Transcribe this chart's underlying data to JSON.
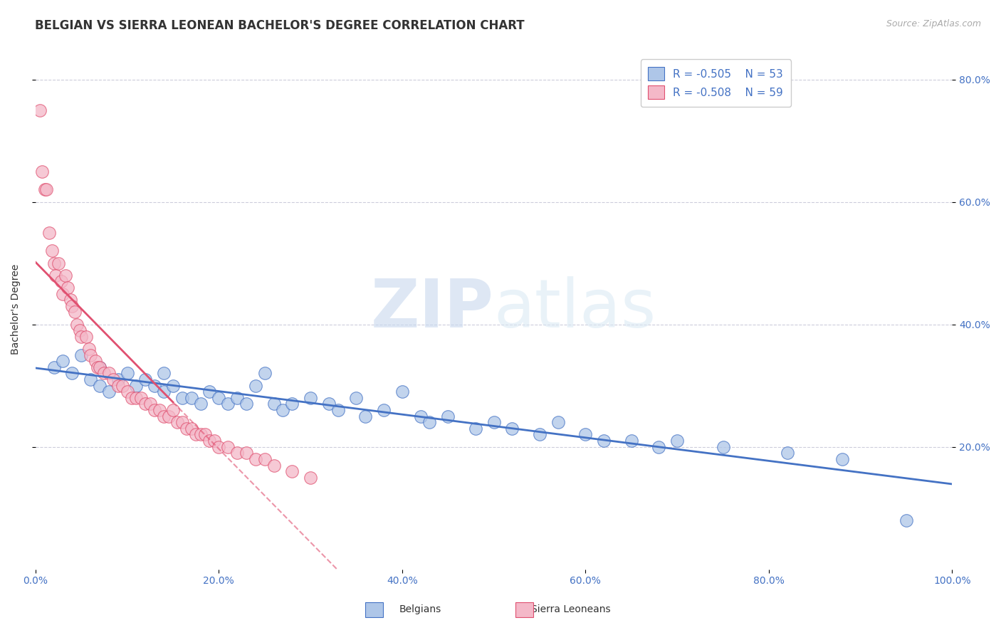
{
  "title": "BELGIAN VS SIERRA LEONEAN BACHELOR'S DEGREE CORRELATION CHART",
  "source_text": "Source: ZipAtlas.com",
  "ylabel": "Bachelor's Degree",
  "legend_labels": [
    "Belgians",
    "Sierra Leoneans"
  ],
  "legend_R": [
    "R = -0.505",
    "R = -0.508"
  ],
  "legend_N": [
    "N = 53",
    "N = 59"
  ],
  "belgian_color": "#aec6e8",
  "sierraleone_color": "#f4b8c8",
  "trendline_belgian_color": "#4472c4",
  "trendline_sl_color": "#e05070",
  "watermark_color": "#dce8f5",
  "xlim": [
    0.0,
    1.0
  ],
  "ylim": [
    0.0,
    0.85
  ],
  "xticks": [
    0.0,
    0.2,
    0.4,
    0.6,
    0.8,
    1.0
  ],
  "xticklabels": [
    "0.0%",
    "20.0%",
    "40.0%",
    "60.0%",
    "80.0%",
    "100.0%"
  ],
  "right_yticks": [
    0.2,
    0.4,
    0.6,
    0.8
  ],
  "right_yticklabels": [
    "20.0%",
    "40.0%",
    "60.0%",
    "80.0%"
  ],
  "belgian_scatter_x": [
    0.02,
    0.03,
    0.04,
    0.05,
    0.06,
    0.07,
    0.07,
    0.08,
    0.09,
    0.1,
    0.11,
    0.12,
    0.13,
    0.14,
    0.14,
    0.15,
    0.16,
    0.17,
    0.18,
    0.19,
    0.2,
    0.21,
    0.22,
    0.23,
    0.24,
    0.25,
    0.26,
    0.27,
    0.28,
    0.3,
    0.32,
    0.33,
    0.35,
    0.36,
    0.38,
    0.4,
    0.42,
    0.43,
    0.45,
    0.48,
    0.5,
    0.52,
    0.55,
    0.57,
    0.6,
    0.62,
    0.65,
    0.68,
    0.7,
    0.75,
    0.82,
    0.88,
    0.95
  ],
  "belgian_scatter_y": [
    0.33,
    0.34,
    0.32,
    0.35,
    0.31,
    0.3,
    0.33,
    0.29,
    0.31,
    0.32,
    0.3,
    0.31,
    0.3,
    0.29,
    0.32,
    0.3,
    0.28,
    0.28,
    0.27,
    0.29,
    0.28,
    0.27,
    0.28,
    0.27,
    0.3,
    0.32,
    0.27,
    0.26,
    0.27,
    0.28,
    0.27,
    0.26,
    0.28,
    0.25,
    0.26,
    0.29,
    0.25,
    0.24,
    0.25,
    0.23,
    0.24,
    0.23,
    0.22,
    0.24,
    0.22,
    0.21,
    0.21,
    0.2,
    0.21,
    0.2,
    0.19,
    0.18,
    0.08
  ],
  "sl_scatter_x": [
    0.005,
    0.007,
    0.01,
    0.012,
    0.015,
    0.018,
    0.02,
    0.022,
    0.025,
    0.028,
    0.03,
    0.033,
    0.035,
    0.038,
    0.04,
    0.043,
    0.045,
    0.048,
    0.05,
    0.055,
    0.058,
    0.06,
    0.065,
    0.068,
    0.07,
    0.075,
    0.08,
    0.085,
    0.09,
    0.095,
    0.1,
    0.105,
    0.11,
    0.115,
    0.12,
    0.125,
    0.13,
    0.135,
    0.14,
    0.145,
    0.15,
    0.155,
    0.16,
    0.165,
    0.17,
    0.175,
    0.18,
    0.185,
    0.19,
    0.195,
    0.2,
    0.21,
    0.22,
    0.23,
    0.24,
    0.25,
    0.26,
    0.28,
    0.3
  ],
  "sl_scatter_y": [
    0.75,
    0.65,
    0.62,
    0.62,
    0.55,
    0.52,
    0.5,
    0.48,
    0.5,
    0.47,
    0.45,
    0.48,
    0.46,
    0.44,
    0.43,
    0.42,
    0.4,
    0.39,
    0.38,
    0.38,
    0.36,
    0.35,
    0.34,
    0.33,
    0.33,
    0.32,
    0.32,
    0.31,
    0.3,
    0.3,
    0.29,
    0.28,
    0.28,
    0.28,
    0.27,
    0.27,
    0.26,
    0.26,
    0.25,
    0.25,
    0.26,
    0.24,
    0.24,
    0.23,
    0.23,
    0.22,
    0.22,
    0.22,
    0.21,
    0.21,
    0.2,
    0.2,
    0.19,
    0.19,
    0.18,
    0.18,
    0.17,
    0.16,
    0.15
  ],
  "background_color": "#ffffff",
  "grid_color": "#c8c8d8",
  "title_fontsize": 12,
  "axis_label_fontsize": 10,
  "tick_fontsize": 10,
  "legend_fontsize": 11
}
